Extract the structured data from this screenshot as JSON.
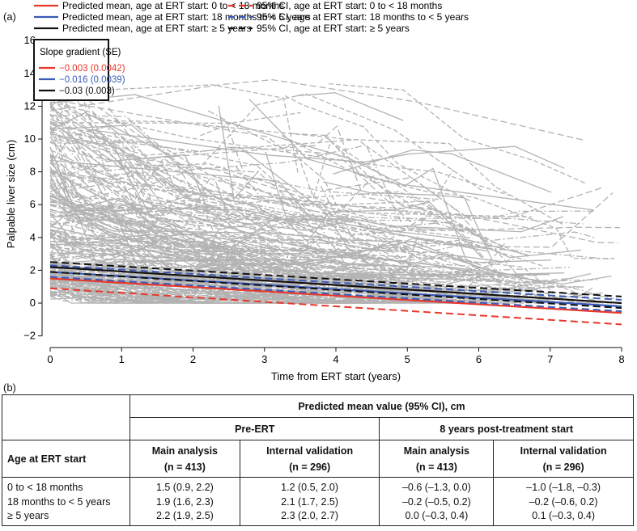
{
  "panel_a_label": "(a)",
  "panel_b_label": "(b)",
  "chart_data": {
    "type": "line",
    "xlabel": "Time from ERT start (years)",
    "ylabel": "Palpable liver size (cm)",
    "xlim": [
      0,
      8
    ],
    "ylim": [
      -2,
      16
    ],
    "xticks": [
      "0",
      "1",
      "2",
      "3",
      "4",
      "5",
      "6",
      "7",
      "8"
    ],
    "yticks": [
      "−2",
      "0",
      "2",
      "4",
      "6",
      "8",
      "10",
      "12",
      "14",
      "16"
    ],
    "legend": [
      {
        "label": "Predicted mean, age at ERT start: 0 to < 18 months",
        "color": "#e8382b",
        "style": "solid"
      },
      {
        "label": "Predicted mean, age at ERT start: 18 months to < 5 years",
        "color": "#3a5bb8",
        "style": "solid"
      },
      {
        "label": "Predicted mean, age at ERT start: ≥ 5 years",
        "color": "#111111",
        "style": "solid"
      },
      {
        "label": "95% CI, age at ERT start: 0 to < 18 months",
        "color": "#e8382b",
        "style": "dashed"
      },
      {
        "label": "95% CI, age at ERT start: 18 months to < 5 years",
        "color": "#3a5bb8",
        "style": "dashed"
      },
      {
        "label": "95% CI, age at ERT start: ≥ 5 years",
        "color": "#111111",
        "style": "dashed"
      }
    ],
    "slope_box": {
      "title": "Slope gradient (SE)",
      "items": [
        {
          "text": "−0.003 (0.0042)",
          "color": "#e8382b"
        },
        {
          "text": "−0.016 (0.0039)",
          "color": "#3a5bb8"
        },
        {
          "text": "−0.03 (0.003)",
          "color": "#111111"
        }
      ]
    },
    "series": [
      {
        "name": "0 to < 18 months",
        "color": "#e8382b",
        "x": [
          0,
          8
        ],
        "mean": [
          1.5,
          -0.6
        ],
        "ci_low": [
          0.9,
          -1.3
        ],
        "ci_high": [
          2.2,
          0.0
        ]
      },
      {
        "name": "18 months to < 5 years",
        "color": "#3a5bb8",
        "x": [
          0,
          8
        ],
        "mean": [
          1.9,
          -0.2
        ],
        "ci_low": [
          1.6,
          -0.5
        ],
        "ci_high": [
          2.3,
          0.2
        ]
      },
      {
        "name": "≥ 5 years",
        "color": "#111111",
        "x": [
          0,
          8
        ],
        "mean": [
          2.2,
          0.0
        ],
        "ci_low": [
          1.9,
          -0.3
        ],
        "ci_high": [
          2.5,
          0.4
        ]
      }
    ],
    "individual_trajectories_color": "#b3b3b3"
  },
  "table": {
    "header_main": "Predicted mean value (95% CI), cm",
    "group1": "Pre-ERT",
    "group2": "8 years post-treatment start",
    "row_header": "Age at ERT start",
    "cols": [
      {
        "title": "Main analysis",
        "n": "(n = 413)"
      },
      {
        "title": "Internal validation",
        "n": "(n = 296)"
      },
      {
        "title": "Main analysis",
        "n": "(n = 413)"
      },
      {
        "title": "Internal validation",
        "n": "(n = 296)"
      }
    ],
    "rows": [
      {
        "label": "0 to < 18 months",
        "values": [
          "1.5 (0.9, 2.2)",
          "1.2 (0.5, 2.0)",
          "–0.6 (–1.3, 0.0)",
          "–1.0 (–1.8, –0.3)"
        ]
      },
      {
        "label": "18 months to < 5 years",
        "values": [
          "1.9 (1.6, 2.3)",
          "2.1 (1.7, 2.5)",
          "–0.2 (–0.5, 0.2)",
          "–0.2 (–0.6, 0.2)"
        ]
      },
      {
        "label": "≥ 5 years",
        "values": [
          "2.2 (1.9, 2.5)",
          "2.3 (2.0, 2.7)",
          "0.0 (–0.3, 0.4)",
          "0.1 (–0.3, 0.4)"
        ]
      }
    ]
  }
}
